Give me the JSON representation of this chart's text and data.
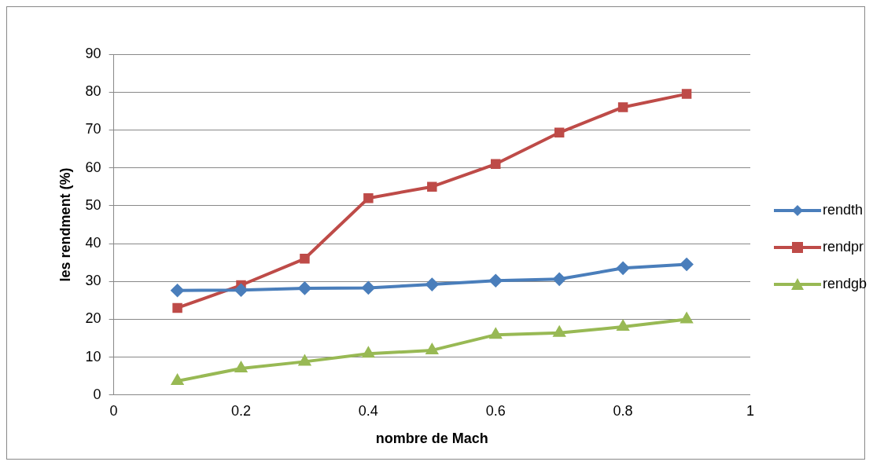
{
  "chart_data": {
    "type": "line",
    "xlabel": "nombre de Mach",
    "ylabel": "les rendment (%)",
    "x": [
      0.1,
      0.2,
      0.3,
      0.4,
      0.5,
      0.6,
      0.7,
      0.8,
      0.9
    ],
    "series": [
      {
        "name": "rendth",
        "color": "#4a7ebb",
        "marker": "diamond",
        "values": [
          27.6,
          27.7,
          28.2,
          28.3,
          29.2,
          30.2,
          30.6,
          33.5,
          34.5
        ]
      },
      {
        "name": "rendpr",
        "color": "#be4b48",
        "marker": "square",
        "values": [
          23,
          29,
          36,
          52,
          55,
          61,
          69.3,
          76,
          79.5
        ]
      },
      {
        "name": "rendgb",
        "color": "#98b954",
        "marker": "triangle",
        "values": [
          3.7,
          7,
          8.8,
          10.9,
          11.8,
          15.9,
          16.4,
          18,
          20
        ]
      }
    ],
    "xlim": [
      0,
      1
    ],
    "xticks": [
      0,
      0.2,
      0.4,
      0.6,
      0.8,
      1
    ],
    "ylim": [
      0,
      90
    ],
    "yticks": [
      0,
      10,
      20,
      30,
      40,
      50,
      60,
      70,
      80,
      90
    ],
    "grid": "y",
    "legend": "right",
    "line_style": "solid"
  }
}
